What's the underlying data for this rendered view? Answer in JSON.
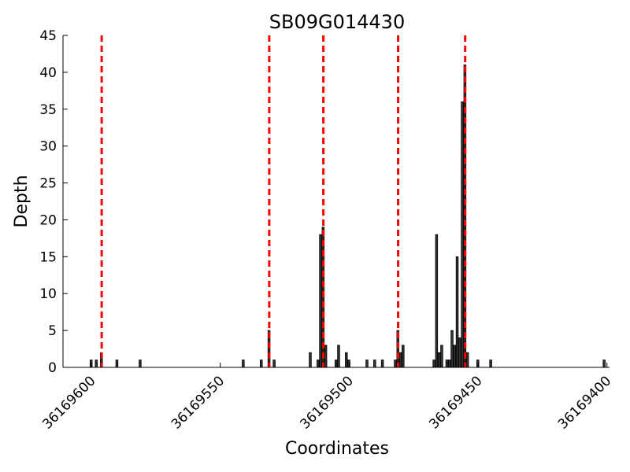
{
  "chart_data": {
    "type": "bar",
    "title": "SB09G014430",
    "xlabel": "Coordinates",
    "ylabel": "Depth",
    "x_reversed": true,
    "xlim": [
      36169611,
      36169399
    ],
    "ylim": [
      0,
      45
    ],
    "x_ticks": [
      36169600,
      36169550,
      36169500,
      36169450,
      36169400
    ],
    "y_ticks": [
      0,
      5,
      10,
      15,
      20,
      25,
      30,
      35,
      40,
      45
    ],
    "grid": false,
    "bar_color": "#333333",
    "marker_color": "#ff0000",
    "markers": [
      36169596,
      36169531,
      36169510,
      36169481,
      36169455
    ],
    "bars": [
      {
        "x": 36169600,
        "y": 1
      },
      {
        "x": 36169598,
        "y": 1
      },
      {
        "x": 36169596,
        "y": 2
      },
      {
        "x": 36169590,
        "y": 1
      },
      {
        "x": 36169581,
        "y": 1
      },
      {
        "x": 36169541,
        "y": 1
      },
      {
        "x": 36169534,
        "y": 1
      },
      {
        "x": 36169531,
        "y": 5
      },
      {
        "x": 36169529,
        "y": 1
      },
      {
        "x": 36169515,
        "y": 2
      },
      {
        "x": 36169512,
        "y": 1
      },
      {
        "x": 36169509,
        "y": 1
      },
      {
        "x": 36169511,
        "y": 18
      },
      {
        "x": 36169510,
        "y": 19
      },
      {
        "x": 36169509,
        "y": 3
      },
      {
        "x": 36169505,
        "y": 1
      },
      {
        "x": 36169504,
        "y": 3
      },
      {
        "x": 36169501,
        "y": 2
      },
      {
        "x": 36169500,
        "y": 1
      },
      {
        "x": 36169493,
        "y": 1
      },
      {
        "x": 36169490,
        "y": 1
      },
      {
        "x": 36169487,
        "y": 1
      },
      {
        "x": 36169482,
        "y": 1
      },
      {
        "x": 36169481,
        "y": 5
      },
      {
        "x": 36169480,
        "y": 2
      },
      {
        "x": 36169479,
        "y": 3
      },
      {
        "x": 36169467,
        "y": 1
      },
      {
        "x": 36169466,
        "y": 18
      },
      {
        "x": 36169465,
        "y": 2
      },
      {
        "x": 36169464,
        "y": 3
      },
      {
        "x": 36169462,
        "y": 1
      },
      {
        "x": 36169461,
        "y": 1
      },
      {
        "x": 36169460,
        "y": 5
      },
      {
        "x": 36169459,
        "y": 3
      },
      {
        "x": 36169458,
        "y": 15
      },
      {
        "x": 36169457,
        "y": 4
      },
      {
        "x": 36169456,
        "y": 36
      },
      {
        "x": 36169455,
        "y": 41
      },
      {
        "x": 36169454,
        "y": 2
      },
      {
        "x": 36169450,
        "y": 1
      },
      {
        "x": 36169445,
        "y": 1
      },
      {
        "x": 36169401,
        "y": 1
      }
    ]
  }
}
